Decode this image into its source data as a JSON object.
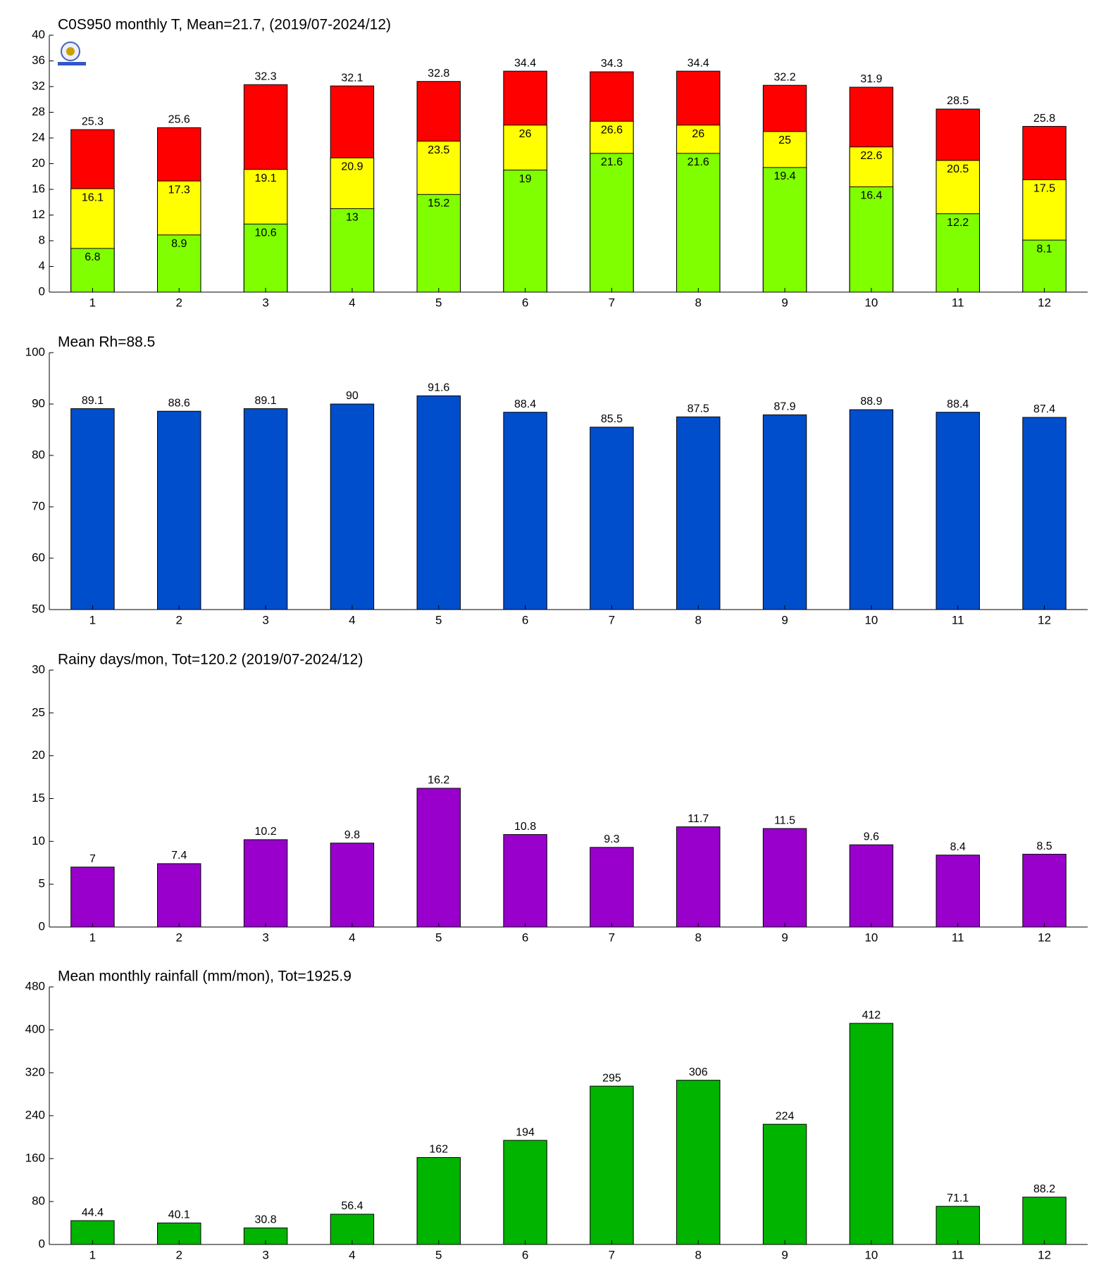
{
  "chart_data": [
    {
      "type": "bar",
      "title": "C0S950 monthly T, Mean=21.7, (2019/07-2024/12)",
      "categories": [
        1,
        2,
        3,
        4,
        5,
        6,
        7,
        8,
        9,
        10,
        11,
        12
      ],
      "series": [
        {
          "color": "#ff0000",
          "values": [
            25.3,
            25.6,
            32.3,
            32.1,
            32.8,
            34.4,
            34.3,
            34.4,
            32.2,
            31.9,
            28.5,
            25.8
          ]
        },
        {
          "color": "#ffff00",
          "values": [
            16.1,
            17.3,
            19.1,
            20.9,
            23.5,
            26,
            26.6,
            26,
            25,
            22.6,
            20.5,
            17.5
          ]
        },
        {
          "color": "#80ff00",
          "values": [
            6.8,
            8.9,
            10.6,
            13,
            15.2,
            19,
            21.6,
            21.6,
            19.4,
            16.4,
            12.2,
            8.1
          ]
        }
      ],
      "ylim": [
        0,
        40
      ],
      "yticks": [
        0,
        4,
        8,
        12,
        16,
        20,
        24,
        28,
        32,
        36,
        40
      ]
    },
    {
      "type": "bar",
      "title": "Mean Rh=88.5",
      "categories": [
        1,
        2,
        3,
        4,
        5,
        6,
        7,
        8,
        9,
        10,
        11,
        12
      ],
      "series": [
        {
          "color": "#004ecc",
          "values": [
            89.1,
            88.6,
            89.1,
            90,
            91.6,
            88.4,
            85.5,
            87.5,
            87.9,
            88.9,
            88.4,
            87.4
          ]
        }
      ],
      "ylim": [
        50,
        100
      ],
      "yticks": [
        50,
        60,
        70,
        80,
        90,
        100
      ]
    },
    {
      "type": "bar",
      "title": "Rainy days/mon, Tot=120.2 (2019/07-2024/12)",
      "categories": [
        1,
        2,
        3,
        4,
        5,
        6,
        7,
        8,
        9,
        10,
        11,
        12
      ],
      "series": [
        {
          "color": "#9900cc",
          "values": [
            7,
            7.4,
            10.2,
            9.8,
            16.2,
            10.8,
            9.3,
            11.7,
            11.5,
            9.6,
            8.4,
            8.5
          ]
        }
      ],
      "ylim": [
        0,
        30
      ],
      "yticks": [
        0,
        5,
        10,
        15,
        20,
        25,
        30
      ]
    },
    {
      "type": "bar",
      "title": "Mean monthly rainfall (mm/mon), Tot=1925.9",
      "categories": [
        1,
        2,
        3,
        4,
        5,
        6,
        7,
        8,
        9,
        10,
        11,
        12
      ],
      "series": [
        {
          "color": "#00b400",
          "values": [
            44.4,
            40.1,
            30.8,
            56.4,
            162,
            194,
            295,
            306,
            224,
            412,
            71.1,
            88.2
          ]
        }
      ],
      "ylim": [
        0,
        480
      ],
      "yticks": [
        0,
        80,
        160,
        240,
        320,
        400,
        480
      ]
    }
  ]
}
